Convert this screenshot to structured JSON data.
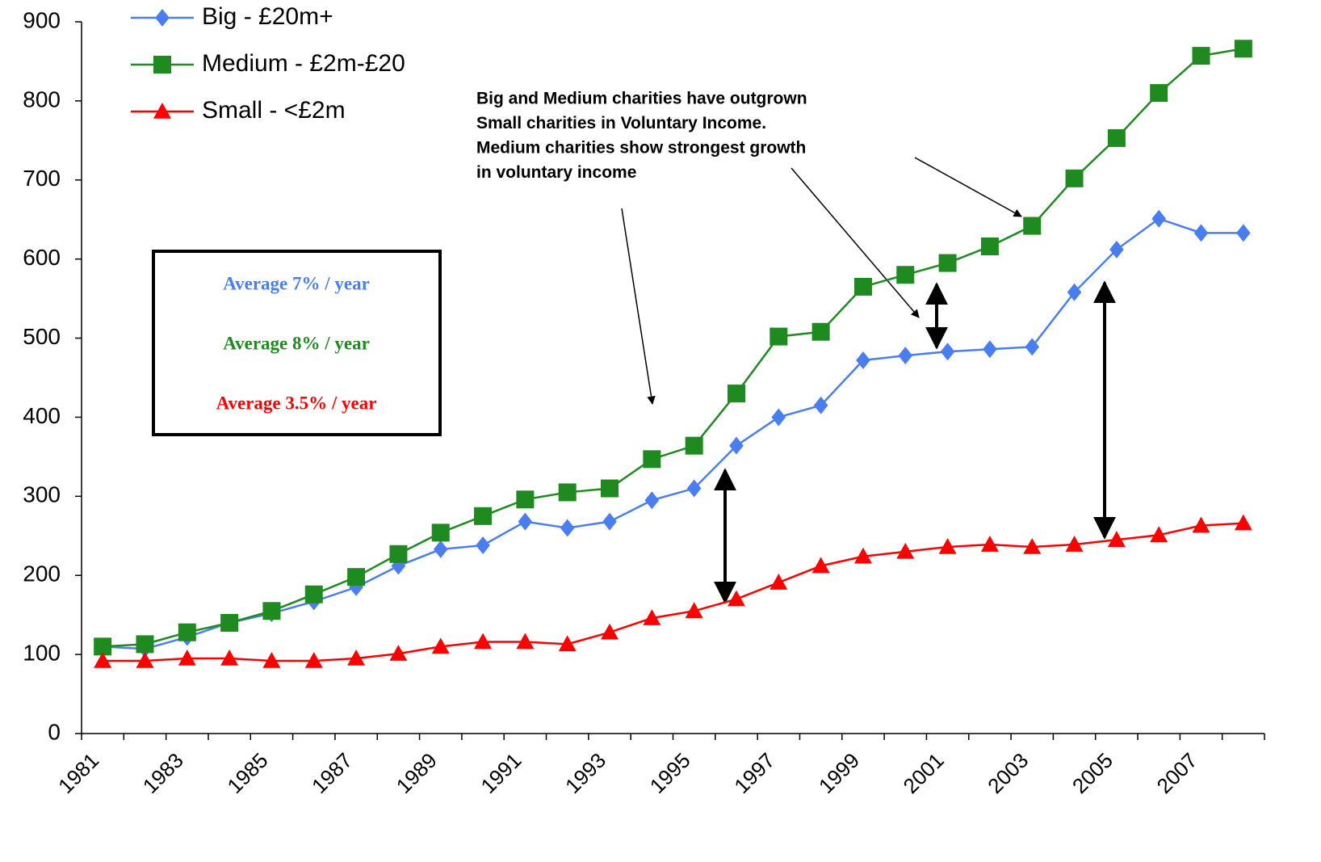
{
  "chart_data": {
    "type": "line",
    "categories": [
      "1981",
      null,
      "1983",
      null,
      "1985",
      null,
      "1987",
      null,
      "1989",
      null,
      "1991",
      null,
      "1993",
      null,
      "1995",
      null,
      "1997",
      null,
      "1999",
      null,
      "2001",
      null,
      "2003",
      null,
      "2005",
      null,
      "2007",
      null
    ],
    "series": [
      {
        "name": "Big - £20m+",
        "color": "#4a7ef0",
        "marker": "diamond",
        "values": [
          110,
          107,
          122,
          140,
          152,
          167,
          185,
          212,
          233,
          238,
          268,
          260,
          268,
          295,
          310,
          364,
          400,
          415,
          472,
          478,
          483,
          486,
          489,
          558,
          612,
          651,
          633,
          633
        ]
      },
      {
        "name": "Medium - £2m-£20",
        "color": "#1f8a1f",
        "marker": "square",
        "values": [
          110,
          113,
          128,
          140,
          155,
          176,
          198,
          227,
          254,
          275,
          296,
          305,
          310,
          347,
          364,
          430,
          502,
          508,
          565,
          580,
          595,
          616,
          642,
          702,
          753,
          810,
          857,
          866
        ]
      },
      {
        "name": "Small - <£2m",
        "color": "#ff0000",
        "marker": "triangle",
        "values": [
          92,
          92,
          95,
          95,
          92,
          92,
          95,
          101,
          110,
          116,
          116,
          113,
          128,
          146,
          155,
          170,
          191,
          212,
          224,
          230,
          236,
          239,
          236,
          239,
          245,
          251,
          263,
          266
        ]
      }
    ],
    "ylim": [
      0,
      900
    ],
    "yticks": [
      0,
      100,
      200,
      300,
      400,
      500,
      600,
      700,
      800,
      900
    ],
    "legend": "top-left",
    "callout": [
      "Big and Medium charities have outgrown",
      "Small charities in Voluntary Income.",
      "Medium charities show strongest growth",
      "in voluntary income"
    ],
    "box_notes": [
      {
        "text": "Average 7% / year",
        "color": "#4a7ef0"
      },
      {
        "text": "Average 8% / year",
        "color": "#1f8a1f"
      },
      {
        "text": "Average 3.5% / year",
        "color": "#ff0000"
      }
    ]
  }
}
